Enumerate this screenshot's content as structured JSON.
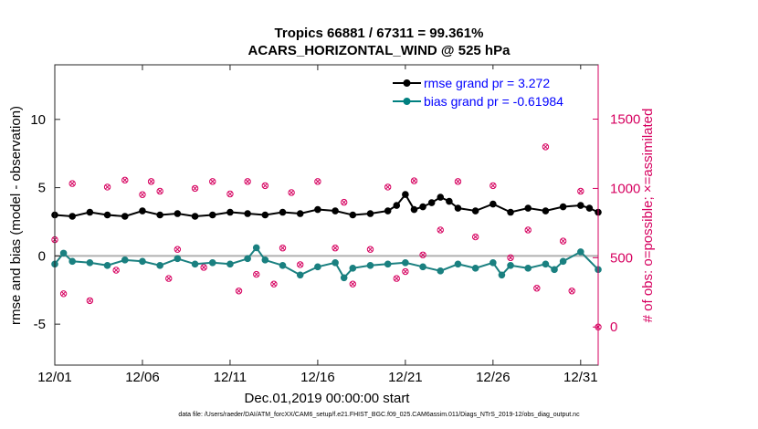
{
  "chart_data": {
    "type": "line",
    "title": "Tropics 66881 / 67311 = 99.361%",
    "subtitle": "ACARS_HORIZONTAL_WIND @ 525 hPa",
    "xlabel": "Dec.01,2019 00:00:00 start",
    "ylabel_left": "rmse and bias (model - observation)",
    "ylabel_right": "# of obs: o=possible; ×=assimilated",
    "x_ticks": [
      {
        "label": "12/01",
        "day": 1
      },
      {
        "label": "12/06",
        "day": 6
      },
      {
        "label": "12/11",
        "day": 11
      },
      {
        "label": "12/16",
        "day": 16
      },
      {
        "label": "12/21",
        "day": 21
      },
      {
        "label": "12/26",
        "day": 26
      },
      {
        "label": "12/31",
        "day": 31
      }
    ],
    "xlim": [
      1,
      32
    ],
    "ylim_left": [
      -8,
      14
    ],
    "yticks_left": [
      -5,
      0,
      5,
      10
    ],
    "ylim_right": [
      -275,
      1892
    ],
    "yticks_right": [
      0,
      500,
      1000,
      1500
    ],
    "legend": [
      {
        "label": "rmse grand pr = 3.272",
        "color": "#000000",
        "text_color": "#0000ff"
      },
      {
        "label": "bias grand pr = -0.61984",
        "color": "#008080",
        "text_color": "#0000ff"
      }
    ],
    "colors": {
      "rmse": "#000000",
      "bias": "#1a8080",
      "obs": "#d6005f",
      "zero": "#b0b0b0",
      "right_axis": "#d6005f"
    },
    "rmse": {
      "x": [
        1.0,
        2.0,
        3.0,
        4.0,
        5.0,
        6.0,
        7.0,
        8.0,
        9.0,
        10.0,
        11.0,
        12.0,
        13.0,
        14.0,
        15.0,
        16.0,
        17.0,
        18.0,
        19.0,
        20.0,
        20.5,
        21.0,
        21.5,
        22.0,
        22.5,
        23.0,
        23.5,
        24.0,
        25.0,
        26.0,
        27.0,
        28.0,
        29.0,
        30.0,
        31.0,
        31.5,
        32.0
      ],
      "y": [
        3.0,
        2.9,
        3.2,
        3.0,
        2.9,
        3.3,
        3.0,
        3.1,
        2.9,
        3.0,
        3.2,
        3.1,
        3.0,
        3.2,
        3.1,
        3.4,
        3.3,
        3.0,
        3.1,
        3.3,
        3.7,
        4.5,
        3.4,
        3.6,
        3.9,
        4.3,
        4.0,
        3.5,
        3.3,
        3.8,
        3.2,
        3.5,
        3.3,
        3.6,
        3.7,
        3.5,
        3.2
      ]
    },
    "bias": {
      "x": [
        1.0,
        1.5,
        2.0,
        3.0,
        4.0,
        5.0,
        6.0,
        7.0,
        8.0,
        9.0,
        10.0,
        11.0,
        12.0,
        12.5,
        13.0,
        14.0,
        15.0,
        16.0,
        17.0,
        17.5,
        18.0,
        19.0,
        20.0,
        21.0,
        22.0,
        23.0,
        24.0,
        25.0,
        26.0,
        26.5,
        27.0,
        28.0,
        29.0,
        29.5,
        30.0,
        31.0,
        32.0
      ],
      "y": [
        -0.6,
        0.2,
        -0.4,
        -0.5,
        -0.7,
        -0.3,
        -0.4,
        -0.7,
        -0.2,
        -0.6,
        -0.5,
        -0.6,
        -0.2,
        0.6,
        -0.3,
        -0.7,
        -1.4,
        -0.8,
        -0.5,
        -1.6,
        -0.9,
        -0.7,
        -0.6,
        -0.5,
        -0.8,
        -1.1,
        -0.6,
        -0.9,
        -0.5,
        -1.4,
        -0.7,
        -0.9,
        -0.6,
        -1.0,
        -0.4,
        0.3,
        -1.0
      ]
    },
    "obs": {
      "x": [
        1.0,
        1.5,
        2.0,
        3.0,
        4.0,
        4.5,
        5.0,
        6.0,
        6.5,
        7.0,
        7.5,
        8.0,
        9.0,
        9.5,
        10.0,
        11.0,
        11.5,
        12.0,
        12.5,
        13.0,
        13.5,
        14.0,
        14.5,
        15.0,
        16.0,
        17.0,
        17.5,
        18.0,
        19.0,
        20.0,
        20.5,
        21.0,
        21.5,
        22.0,
        23.0,
        24.0,
        25.0,
        26.0,
        27.0,
        28.0,
        28.5,
        29.0,
        30.0,
        30.5,
        31.0,
        32.0
      ],
      "y": [
        630,
        240,
        1035,
        190,
        1010,
        410,
        1060,
        955,
        1050,
        980,
        350,
        560,
        1000,
        430,
        1050,
        960,
        260,
        1050,
        380,
        1020,
        310,
        570,
        970,
        450,
        1050,
        570,
        900,
        310,
        560,
        1010,
        350,
        400,
        1055,
        520,
        700,
        1050,
        650,
        1020,
        500,
        700,
        280,
        1300,
        620,
        260,
        980,
        0
      ]
    }
  }
}
